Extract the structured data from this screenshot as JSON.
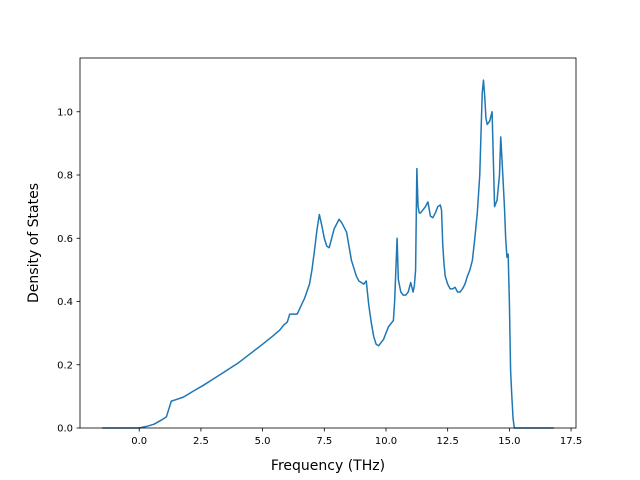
{
  "chart_data": {
    "type": "line",
    "title": "",
    "xlabel": "Frequency (THz)",
    "ylabel": "Density of States",
    "xlim": [
      -2.4,
      17.7
    ],
    "ylim": [
      0.0,
      1.17
    ],
    "grid": false,
    "xticks": [
      0.0,
      2.5,
      5.0,
      7.5,
      10.0,
      12.5,
      15.0,
      17.5
    ],
    "xtick_labels": [
      "0.0",
      "2.5",
      "5.0",
      "7.5",
      "10.0",
      "12.5",
      "15.0",
      "17.5"
    ],
    "yticks": [
      0.0,
      0.2,
      0.4,
      0.6,
      0.8,
      1.0
    ],
    "ytick_labels": [
      "0.0",
      "0.2",
      "0.4",
      "0.6",
      "0.8",
      "1.0"
    ],
    "line_color": "#1f77b4",
    "series": [
      {
        "x": [
          -1.5,
          -0.5,
          0.0,
          0.3,
          0.6,
          0.9,
          1.1,
          1.3,
          1.5,
          1.8,
          2.2,
          2.6,
          3.0,
          3.5,
          4.0,
          4.5,
          5.0,
          5.4,
          5.7,
          5.85,
          6.0,
          6.1,
          6.2,
          6.4,
          6.7,
          6.9,
          7.0,
          7.1,
          7.2,
          7.3,
          7.4,
          7.5,
          7.6,
          7.7,
          7.9,
          8.1,
          8.2,
          8.3,
          8.4,
          8.6,
          8.8,
          8.9,
          9.0,
          9.1,
          9.2,
          9.3,
          9.4,
          9.5,
          9.6,
          9.7,
          9.9,
          10.1,
          10.2,
          10.3,
          10.35,
          10.4,
          10.45,
          10.5,
          10.6,
          10.7,
          10.8,
          10.9,
          11.0,
          11.1,
          11.15,
          11.2,
          11.25,
          11.3,
          11.35,
          11.4,
          11.5,
          11.6,
          11.7,
          11.8,
          11.9,
          12.0,
          12.1,
          12.2,
          12.25,
          12.3,
          12.35,
          12.4,
          12.5,
          12.6,
          12.7,
          12.8,
          12.9,
          13.0,
          13.1,
          13.2,
          13.3,
          13.4,
          13.5,
          13.6,
          13.7,
          13.8,
          13.9,
          13.95,
          14.0,
          14.05,
          14.1,
          14.2,
          14.3,
          14.35,
          14.4,
          14.5,
          14.6,
          14.65,
          14.7,
          14.8,
          14.85,
          14.9,
          14.95,
          15.0,
          15.05,
          15.1,
          15.15,
          15.2,
          15.3,
          16.0,
          16.8
        ],
        "y": [
          0.0,
          0.0,
          0.0,
          0.005,
          0.012,
          0.025,
          0.035,
          0.085,
          0.09,
          0.098,
          0.117,
          0.135,
          0.155,
          0.18,
          0.205,
          0.235,
          0.265,
          0.29,
          0.31,
          0.325,
          0.335,
          0.36,
          0.36,
          0.36,
          0.41,
          0.455,
          0.5,
          0.56,
          0.625,
          0.675,
          0.64,
          0.6,
          0.575,
          0.57,
          0.63,
          0.66,
          0.65,
          0.635,
          0.62,
          0.53,
          0.48,
          0.465,
          0.46,
          0.455,
          0.465,
          0.39,
          0.335,
          0.29,
          0.265,
          0.26,
          0.28,
          0.32,
          0.33,
          0.34,
          0.4,
          0.5,
          0.6,
          0.47,
          0.43,
          0.42,
          0.42,
          0.43,
          0.46,
          0.43,
          0.45,
          0.5,
          0.82,
          0.7,
          0.68,
          0.68,
          0.69,
          0.7,
          0.715,
          0.67,
          0.665,
          0.68,
          0.7,
          0.705,
          0.69,
          0.58,
          0.52,
          0.48,
          0.455,
          0.44,
          0.44,
          0.445,
          0.43,
          0.43,
          0.44,
          0.455,
          0.48,
          0.5,
          0.53,
          0.6,
          0.68,
          0.8,
          1.06,
          1.1,
          1.05,
          0.98,
          0.96,
          0.97,
          1.0,
          0.85,
          0.7,
          0.72,
          0.8,
          0.92,
          0.85,
          0.7,
          0.6,
          0.54,
          0.55,
          0.4,
          0.18,
          0.1,
          0.03,
          0.0,
          0.0,
          0.0,
          0.0
        ]
      }
    ]
  }
}
